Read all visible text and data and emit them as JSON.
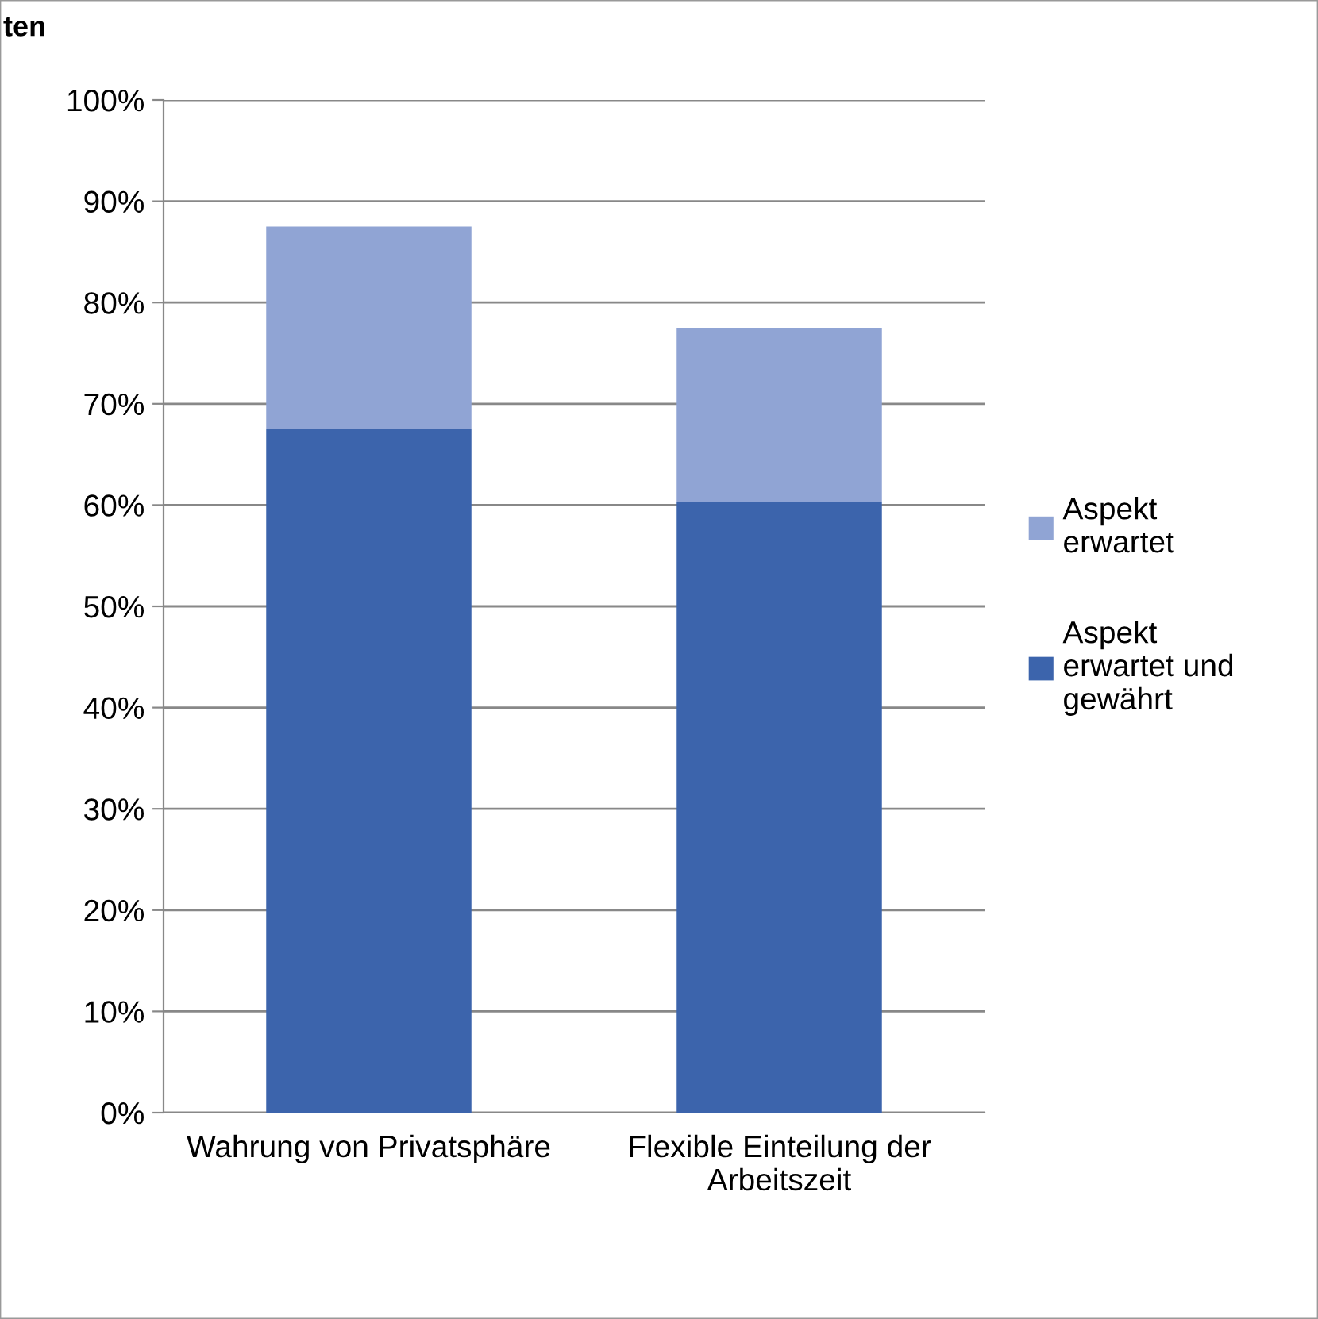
{
  "chart_data": {
    "type": "bar",
    "title": "ten",
    "stacked": true,
    "categories": [
      "Wahrung von Privatsphäre",
      "Flexible Einteilung der Arbeitszeit"
    ],
    "series": [
      {
        "name": "Aspekt erwartet und gewährt",
        "color": "#3c64ac",
        "values": [
          67.5,
          60.3
        ]
      },
      {
        "name": "Aspekt erwartet",
        "color": "#90a4d4",
        "values": [
          20,
          17.2
        ]
      }
    ],
    "ylim": [
      0,
      100
    ],
    "yticks": [
      {
        "value": 0,
        "label": "0%"
      },
      {
        "value": 10,
        "label": "10%"
      },
      {
        "value": 20,
        "label": "20%"
      },
      {
        "value": 30,
        "label": "30%"
      },
      {
        "value": 40,
        "label": "40%"
      },
      {
        "value": 50,
        "label": "50%"
      },
      {
        "value": 60,
        "label": "60%"
      },
      {
        "value": 70,
        "label": "70%"
      },
      {
        "value": 80,
        "label": "80%"
      },
      {
        "value": 90,
        "label": "90%"
      },
      {
        "value": 100,
        "label": "100%"
      }
    ],
    "grid": "y",
    "legend": "right"
  }
}
